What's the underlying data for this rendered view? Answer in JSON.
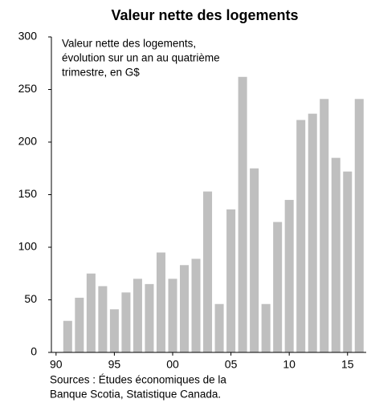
{
  "chart_data": {
    "type": "bar",
    "title": "Valeur nette des logements",
    "annotation": [
      "Valeur nette des logements,",
      "évolution sur un an au quatrième",
      "trimestre, en G$"
    ],
    "source": [
      "Sources : Études économiques de la",
      "Banque Scotia, Statistique Canada."
    ],
    "x": [
      1991,
      1992,
      1993,
      1994,
      1995,
      1996,
      1997,
      1998,
      1999,
      2000,
      2001,
      2002,
      2003,
      2004,
      2005,
      2006,
      2007,
      2008,
      2009,
      2010,
      2011,
      2012,
      2013,
      2014,
      2015,
      2016
    ],
    "values": [
      30,
      52,
      75,
      63,
      41,
      57,
      70,
      65,
      95,
      70,
      83,
      89,
      153,
      46,
      136,
      262,
      175,
      46,
      124,
      145,
      221,
      227,
      241,
      185,
      172,
      241
    ],
    "color": "#bfbfbf",
    "xlim": [
      1989.6,
      2016.6
    ],
    "xticks": [
      {
        "value": 1990,
        "label": "90"
      },
      {
        "value": 1995,
        "label": "95"
      },
      {
        "value": 2000,
        "label": "00"
      },
      {
        "value": 2005,
        "label": "05"
      },
      {
        "value": 2010,
        "label": "10"
      },
      {
        "value": 2015,
        "label": "15"
      }
    ],
    "ylim": [
      0,
      300
    ],
    "yticks": [
      0,
      50,
      100,
      150,
      200,
      250,
      300
    ],
    "grid": false
  }
}
